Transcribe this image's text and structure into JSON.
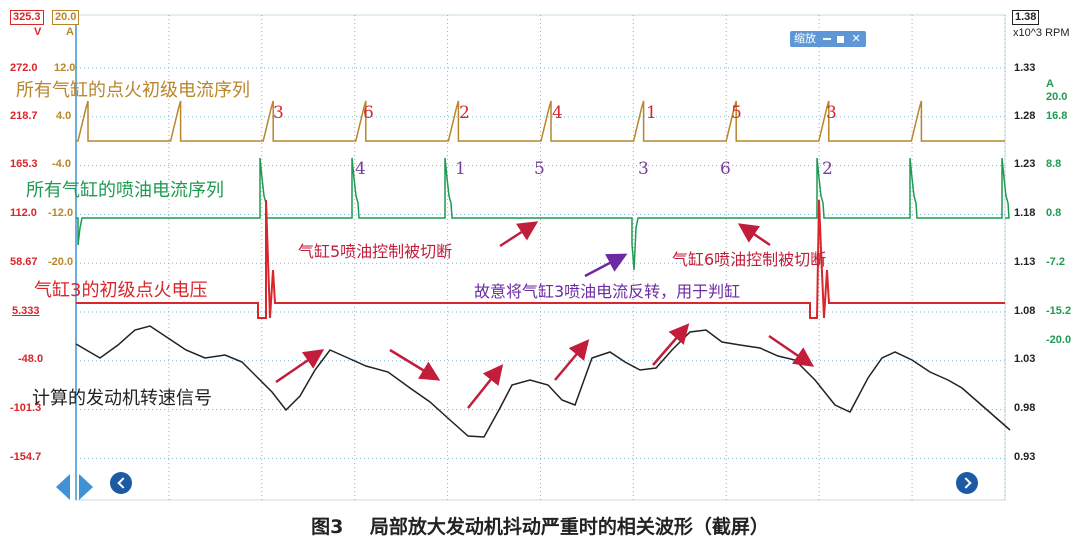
{
  "colors": {
    "ignition": "#b8862b",
    "injector": "#1f9a52",
    "primary_voltage": "#d8262b",
    "rpm": "#222222",
    "sequence_injector": "#7a3e9d",
    "grid": "#7fb8d6",
    "arrow_red": "#c21d3b",
    "arrow_purple": "#6e2aa3"
  },
  "header": {
    "ch_a_box": "325.3",
    "ch_a_unit": "V",
    "ch_b_box": "20.0",
    "ch_b_unit": "A",
    "rpm_box": "1.38",
    "rpm_unit": "x10^3 RPM",
    "zoom_label": "缩放"
  },
  "axes": {
    "left_volts": [
      "272.0",
      "218.7",
      "165.3",
      "112.0",
      "58.67",
      "5.333",
      "-48.0",
      "-101.3",
      "-154.7"
    ],
    "left_amps": [
      "12.0",
      "4.0",
      "-4.0",
      "-12.0",
      "-20.0"
    ],
    "right_rpm": [
      "1.33",
      "1.28",
      "1.23",
      "1.18",
      "1.13",
      "1.08",
      "1.03",
      "0.98",
      "0.93"
    ],
    "right_amps_header": "A",
    "right_amps": [
      "20.0",
      "16.8",
      "8.8",
      "0.8",
      "-7.2",
      "-15.2",
      "-20.0"
    ]
  },
  "trace_labels": {
    "ignition": "所有气缸的点火初级电流序列",
    "injector": "所有气缸的喷油电流序列",
    "primary_voltage": "气缸3的初级点火电压",
    "rpm": "计算的发动机转速信号"
  },
  "sequence": {
    "ignition": [
      "3",
      "6",
      "2",
      "4",
      "1",
      "5",
      "3"
    ],
    "injector": [
      "4",
      "1",
      "5",
      "3",
      "6",
      "2"
    ]
  },
  "annotations": {
    "cyl5_cut": "气缸5喷油控制被切断",
    "cyl6_cut": "气缸6喷油控制被切断",
    "cyl3_reverse": "故意将气缸3喷油电流反转，用于判缸"
  },
  "caption": {
    "figure": "图3",
    "text": "局部放大发动机抖动严重时的相关波形（截屏）"
  }
}
